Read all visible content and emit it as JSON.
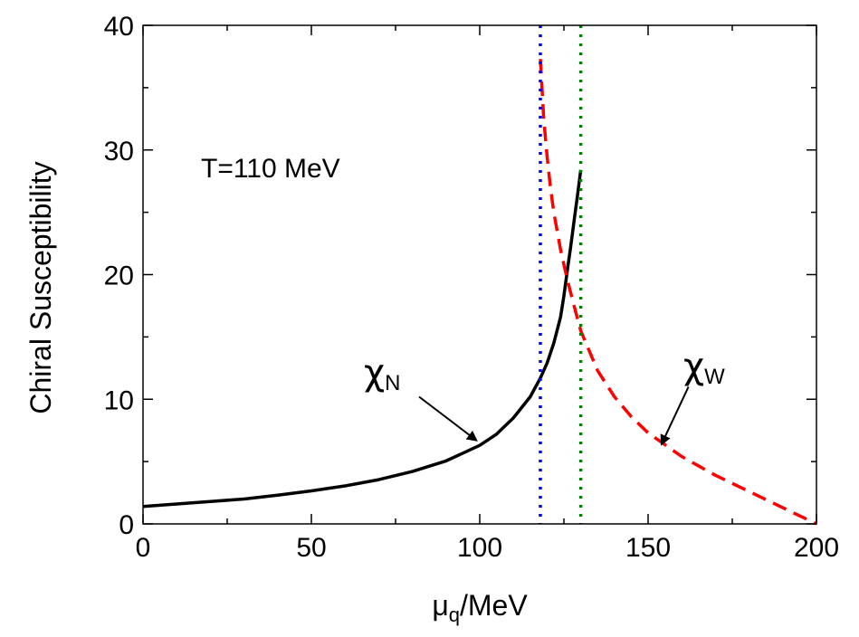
{
  "chart_data": {
    "type": "line",
    "title": "",
    "xlabel": "μq/MeV",
    "xlabel_main": "μ",
    "xlabel_sub": "q",
    "xlabel_rest": "/MeV",
    "ylabel": "Chiral Susceptibility",
    "xlim": [
      0,
      200
    ],
    "ylim": [
      0,
      40
    ],
    "xticks": [
      0,
      50,
      100,
      150,
      200
    ],
    "yticks": [
      0,
      10,
      20,
      30,
      40
    ],
    "xtick_labels": [
      "0",
      "50",
      "100",
      "150",
      "200"
    ],
    "ytick_labels": [
      "0",
      "10",
      "20",
      "30",
      "40"
    ],
    "annotation": "T=110 MeV",
    "series": [
      {
        "name": "χN",
        "label_symbol": "χ",
        "label_sub": "N",
        "color": "#000000",
        "style": "solid",
        "x": [
          0,
          10,
          20,
          30,
          40,
          50,
          60,
          70,
          80,
          90,
          100,
          105,
          110,
          115,
          118,
          120,
          122,
          124,
          125,
          126,
          127,
          128,
          129,
          130
        ],
        "y": [
          1.4,
          1.6,
          1.8,
          2.0,
          2.3,
          2.65,
          3.05,
          3.55,
          4.2,
          5.05,
          6.3,
          7.2,
          8.5,
          10.2,
          11.7,
          12.9,
          14.5,
          16.6,
          18.3,
          20.3,
          22.2,
          24.3,
          26.3,
          28.4
        ]
      },
      {
        "name": "χW",
        "label_symbol": "χ",
        "label_sub": "W",
        "color": "#ff0000",
        "style": "dashed",
        "x": [
          118,
          119,
          120,
          121,
          122,
          124,
          126,
          128,
          130,
          135,
          140,
          145,
          150,
          160,
          170,
          180,
          190,
          200
        ],
        "y": [
          37.3,
          32.5,
          29.5,
          27.0,
          25.0,
          22.0,
          19.6,
          17.5,
          15.5,
          12.3,
          10.2,
          8.6,
          7.3,
          5.4,
          3.9,
          2.6,
          1.3,
          0.0
        ]
      }
    ],
    "vlines": [
      {
        "x": 118,
        "color": "#0000ff",
        "style": "dotted"
      },
      {
        "x": 130,
        "color": "#008000",
        "style": "dotted"
      }
    ],
    "arrows": [
      {
        "label": "χN",
        "from": [
          82,
          10.2
        ],
        "to": [
          99,
          6.7
        ]
      },
      {
        "label": "χW",
        "from": [
          162,
          11.0
        ],
        "to": [
          154,
          6.4
        ]
      }
    ]
  }
}
